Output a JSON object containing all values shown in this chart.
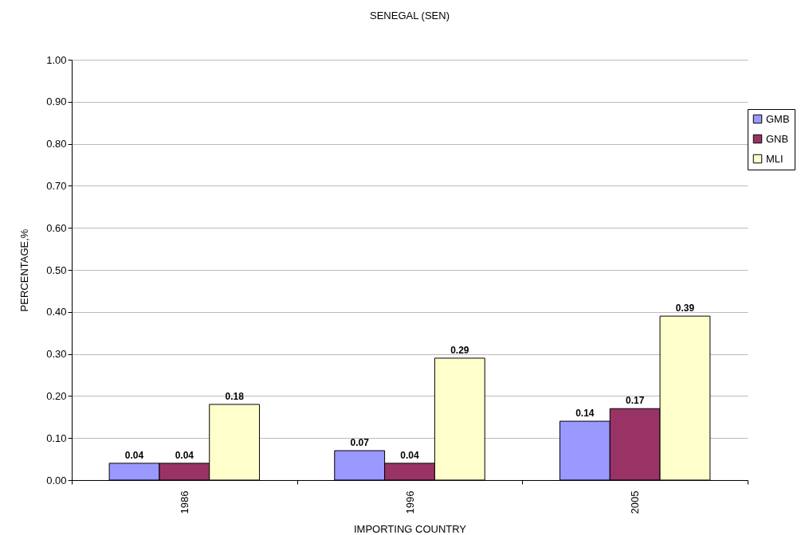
{
  "chart_data": {
    "type": "bar",
    "title": "SENEGAL (SEN)",
    "xlabel": "IMPORTING COUNTRY",
    "ylabel": "PERCENTAGE,%",
    "categories": [
      "1986",
      "1996",
      "2005"
    ],
    "series": [
      {
        "name": "GMB",
        "color": "#9999ff",
        "values": [
          0.04,
          0.07,
          0.14
        ]
      },
      {
        "name": "GNB",
        "color": "#993366",
        "values": [
          0.04,
          0.04,
          0.17
        ]
      },
      {
        "name": "MLI",
        "color": "#ffffcc",
        "values": [
          0.18,
          0.29,
          0.39
        ]
      }
    ],
    "ylim": [
      0,
      1
    ],
    "yticks": [
      {
        "value": 0,
        "label": "0.00"
      },
      {
        "value": 0.1,
        "label": "0.10"
      },
      {
        "value": 0.2,
        "label": "0.20"
      },
      {
        "value": 0.3,
        "label": "0.30"
      },
      {
        "value": 0.4,
        "label": "0.40"
      },
      {
        "value": 0.5,
        "label": "0.50"
      },
      {
        "value": 0.6,
        "label": "0.60"
      },
      {
        "value": 0.7,
        "label": "0.70"
      },
      {
        "value": 0.8,
        "label": "0.80"
      },
      {
        "value": 0.9,
        "label": "0.90"
      },
      {
        "value": 1,
        "label": "1.00"
      }
    ],
    "grid": "y",
    "legend": "right",
    "data_labels": true
  }
}
